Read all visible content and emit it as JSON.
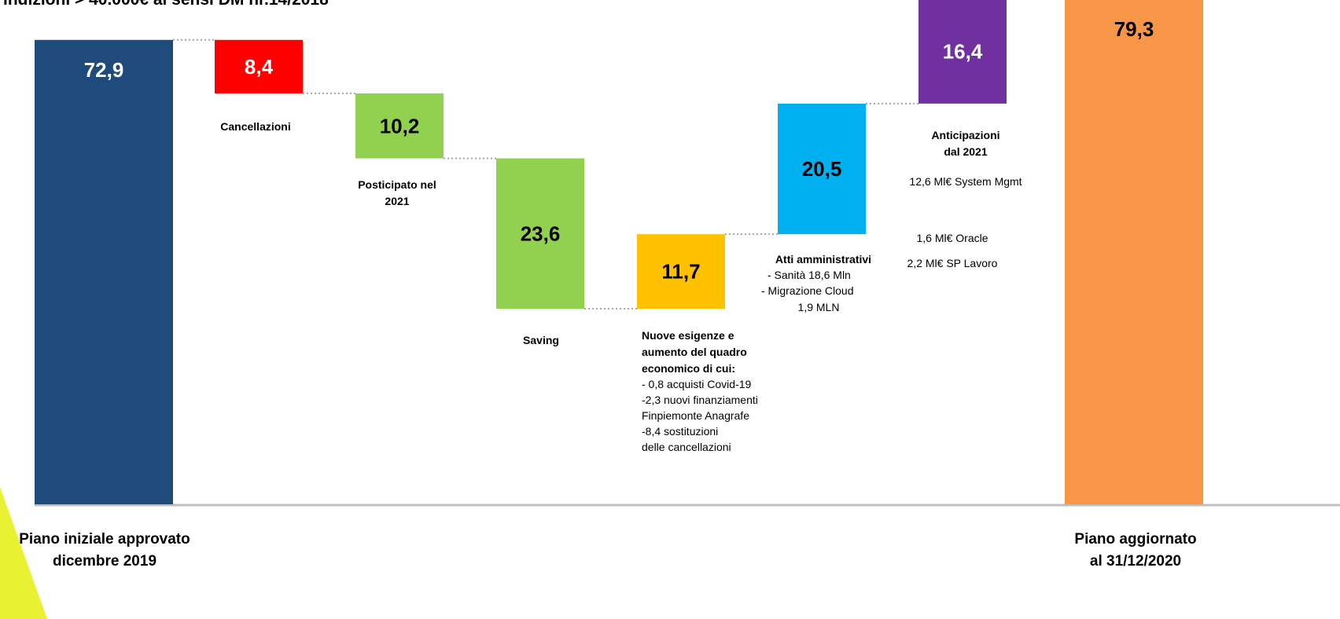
{
  "header": {
    "title_fragment": "indizioni  > 40.000€ ai sensi DM nr.14/2018"
  },
  "colors": {
    "initial": "#1f4a7c",
    "cancellazioni": "#ff0000",
    "posticipato": "#92d050",
    "saving": "#92d050",
    "nuove_esigenze": "#ffc000",
    "atti_amministrativi": "#00b0f0",
    "anticipazioni": "#7030a0",
    "final": "#f79646"
  },
  "chart_data": {
    "type": "bar",
    "subtype": "waterfall",
    "ylim": [
      0,
      79.3
    ],
    "grid": false,
    "legend": "none",
    "bars": [
      {
        "id": "initial",
        "kind": "total",
        "value": 72.9,
        "label": "72,9",
        "label_color": "#ffffff",
        "category_lines": [
          "Piano iniziale approvato",
          "dicembre 2019"
        ]
      },
      {
        "id": "cancellazioni",
        "kind": "decrease",
        "value": 8.4,
        "label": "8,4",
        "label_color": "#ffffff",
        "annotation_bold": [
          "Cancellazioni"
        ],
        "annotation_text": []
      },
      {
        "id": "posticipato",
        "kind": "decrease",
        "value": 10.2,
        "label": "10,2",
        "label_color": "#000000",
        "annotation_bold": [
          "Posticipato nel",
          "2021"
        ],
        "annotation_text": []
      },
      {
        "id": "saving",
        "kind": "decrease",
        "value": 23.6,
        "label": "23,6",
        "label_color": "#000000",
        "annotation_bold": [
          "Saving"
        ],
        "annotation_text": []
      },
      {
        "id": "nuove_esigenze",
        "kind": "increase",
        "value": 11.7,
        "label": "11,7",
        "label_color": "#000000",
        "annotation_bold": [
          "Nuove esigenze e",
          "aumento del quadro",
          "economico di cui:"
        ],
        "annotation_text": [
          "- 0,8 acquisti Covid-19",
          " -2,3 nuovi finanziamenti",
          "Finpiemonte Anagrafe",
          "-8,4 sostituzioni",
          "delle  cancellazioni"
        ]
      },
      {
        "id": "atti_amministrativi",
        "kind": "increase",
        "value": 20.5,
        "label": "20,5",
        "label_color": "#000000",
        "annotation_bold": [
          "Atti amministrativi"
        ],
        "annotation_text": [
          " -  Sanità  18,6 Mln",
          "-    Migrazione Cloud",
          "1,9 MLN"
        ]
      },
      {
        "id": "anticipazioni",
        "kind": "increase",
        "value": 16.4,
        "label": "16,4",
        "label_color": "#ffffff",
        "annotation_bold": [
          "Anticipazioni",
          "dal 2021"
        ],
        "annotation_text": [
          "12,6 Ml€ System Mgmt",
          "1,6 Ml€ Oracle",
          "2,2 Ml€ SP Lavoro"
        ]
      },
      {
        "id": "final",
        "kind": "total",
        "value": 79.3,
        "label": "79,3",
        "label_color": "#000000",
        "category_lines": [
          "Piano aggiornato",
          "al 31/12/2020"
        ]
      }
    ]
  }
}
